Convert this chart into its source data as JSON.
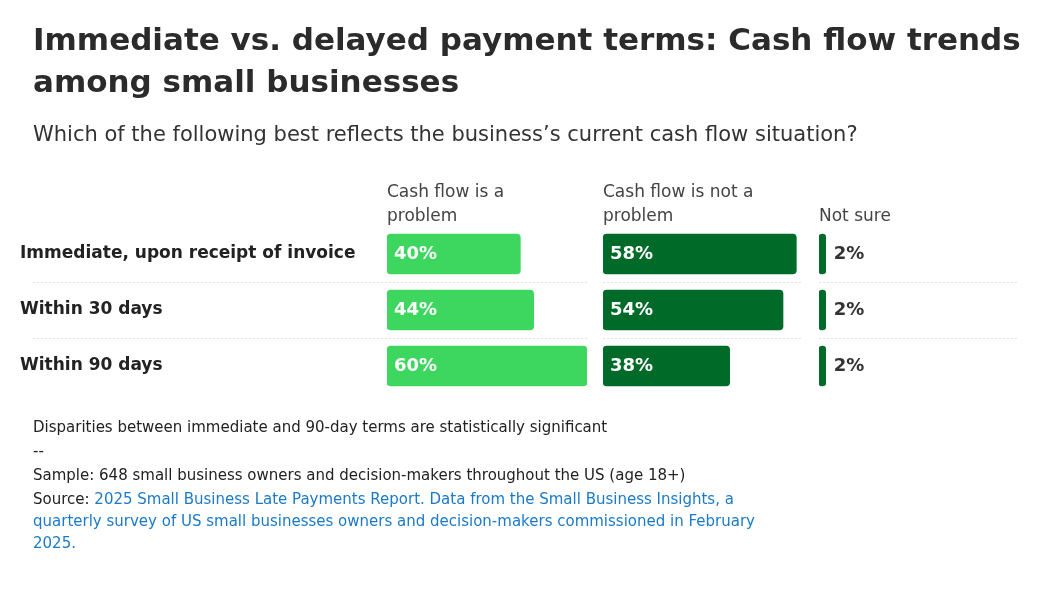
{
  "chart_data": [
    {
      "type": "other",
      "title": "Immediate vs. delayed payment terms: Cash flow trends among small businesses",
      "subtitle": "Which of the following best reflects the business’s current cash flow situation?",
      "annotations": [
        "Disparities between immediate and 90-day terms are statistically significant",
        "--",
        "Sample: 648 small business owners and decision-makers throughout the US (age 18+)",
        "Source: 2025 Small Business Late Payments Report. Data from the Small Business Insights, a quarterly survey of US small businesses owners and decision-makers commissioned in February 2025."
      ]
    },
    {
      "type": "bar",
      "orientation": "horizontal",
      "title": "Cash flow is a problem",
      "categories": [
        "Immediate, upon receipt of invoice",
        "Within 30 days",
        "Within 90 days"
      ],
      "values": [
        40,
        44,
        60
      ],
      "value_labels": [
        "40%",
        "44%",
        "60%"
      ],
      "color": "#3dd65f",
      "grid": "y",
      "tick_labels": "y"
    },
    {
      "type": "bar",
      "orientation": "horizontal",
      "title": "Cash flow is not a problem",
      "categories": [
        null,
        null,
        null
      ],
      "values": [
        58,
        54,
        38
      ],
      "value_labels": [
        "58%",
        "54%",
        "38%"
      ],
      "color": "#006b28",
      "grid": "y",
      "tick_labels": false
    },
    {
      "type": "bar",
      "orientation": "horizontal",
      "title": "Not sure",
      "categories": [
        null,
        null,
        null
      ],
      "values": [
        2,
        2,
        2
      ],
      "value_labels": [
        "2%",
        "2%",
        "2%"
      ],
      "color": "#006b28",
      "grid": "y",
      "tick_labels": false
    }
  ]
}
